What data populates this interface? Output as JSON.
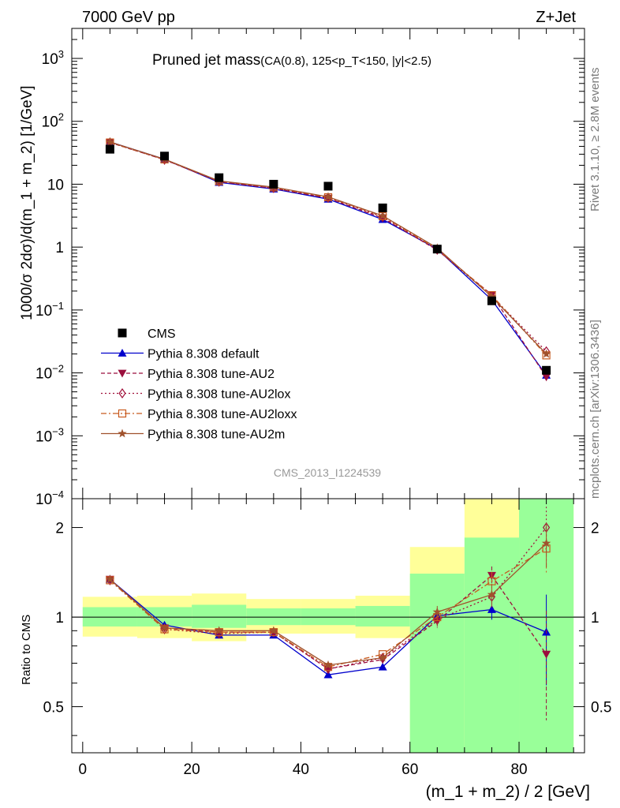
{
  "header": {
    "left": "7000 GeV pp",
    "right": "Z+Jet"
  },
  "side_labels": {
    "rivet": "Rivet 3.1.10, ≥ 2.8M events",
    "mcplots": "mcplots.cern.ch [arXiv:1306.3436]"
  },
  "colors": {
    "cms": "#000000",
    "default": "#0000cc",
    "au2": "#9b0f3d",
    "au2lox": "#a0103a",
    "au2loxx": "#c85a1e",
    "au2m": "#a0522d",
    "green_band": "#99ff99",
    "yellow_band": "#ffff99"
  },
  "chart_data": [
    {
      "type": "line",
      "panel": "main",
      "title": "Pruned jet mass",
      "title_sub": "(CA(0.8), 125<p_T<150, |y|<2.5)",
      "analysis_label": "CMS_2013_I1224539",
      "ylabel": "1000/σ 2dσ)/d(m_1 + m_2) [1/GeV]",
      "yscale": "log",
      "ylim": [
        0.0001,
        3000
      ],
      "xlim": [
        -2,
        92
      ],
      "x": [
        5,
        15,
        25,
        35,
        45,
        55,
        65,
        75,
        85
      ],
      "cms": {
        "name": "CMS",
        "values": [
          36,
          28,
          12.7,
          10.0,
          9.3,
          4.2,
          0.93,
          0.14,
          0.011
        ]
      },
      "series": [
        {
          "name": "Pythia 8.308 default",
          "key": "default",
          "values": [
            47,
            25,
            10.7,
            8.4,
            5.8,
            2.75,
            0.93,
            0.145,
            0.0092
          ]
        },
        {
          "name": "Pythia 8.308 tune-AU2",
          "key": "au2",
          "values": [
            46,
            24.5,
            11.0,
            8.6,
            6.0,
            2.9,
            0.9,
            0.175,
            0.0086
          ]
        },
        {
          "name": "Pythia 8.308 tune-AU2lox",
          "key": "au2lox",
          "values": [
            46,
            24.5,
            11.0,
            8.7,
            6.1,
            3.0,
            0.91,
            0.165,
            0.022
          ]
        },
        {
          "name": "Pythia 8.308 tune-AU2loxx",
          "key": "au2loxx",
          "values": [
            46,
            24.8,
            11.2,
            8.9,
            6.2,
            3.1,
            0.93,
            0.172,
            0.019
          ]
        },
        {
          "name": "Pythia 8.308 tune-AU2m",
          "key": "au2m",
          "values": [
            47,
            25,
            11.3,
            9.0,
            6.3,
            3.15,
            0.97,
            0.162,
            0.02
          ]
        }
      ],
      "yticks": [
        {
          "v": 1000,
          "base": "10",
          "exp": "3"
        },
        {
          "v": 100,
          "base": "10",
          "exp": "2"
        },
        {
          "v": 10,
          "base": "10",
          "exp": ""
        },
        {
          "v": 1,
          "base": "1",
          "exp": ""
        },
        {
          "v": 0.1,
          "base": "10",
          "exp": "−1"
        },
        {
          "v": 0.01,
          "base": "10",
          "exp": "−2"
        },
        {
          "v": 0.001,
          "base": "10",
          "exp": "−3"
        },
        {
          "v": 0.0001,
          "base": "10",
          "exp": "−4"
        }
      ]
    },
    {
      "type": "line",
      "panel": "ratio",
      "ylabel": "Ratio to CMS",
      "xlabel": "(m_1 + m_2) / 2 [GeV]",
      "yscale": "log",
      "ylim": [
        0.35,
        2.5
      ],
      "xlim": [
        -2,
        92
      ],
      "xticks": [
        0,
        20,
        40,
        60,
        80
      ],
      "yticks": [
        0.5,
        1,
        2
      ],
      "bins": [
        {
          "lo": 0,
          "hi": 10,
          "green": [
            0.93,
            1.08
          ],
          "yellow": [
            0.86,
            1.17
          ]
        },
        {
          "lo": 10,
          "hi": 20,
          "green": [
            0.93,
            1.08
          ],
          "yellow": [
            0.85,
            1.18
          ]
        },
        {
          "lo": 20,
          "hi": 30,
          "green": [
            0.92,
            1.1
          ],
          "yellow": [
            0.83,
            1.2
          ]
        },
        {
          "lo": 30,
          "hi": 40,
          "green": [
            0.94,
            1.07
          ],
          "yellow": [
            0.88,
            1.15
          ]
        },
        {
          "lo": 40,
          "hi": 50,
          "green": [
            0.94,
            1.07
          ],
          "yellow": [
            0.88,
            1.15
          ]
        },
        {
          "lo": 50,
          "hi": 60,
          "green": [
            0.93,
            1.09
          ],
          "yellow": [
            0.85,
            1.18
          ]
        },
        {
          "lo": 60,
          "hi": 70,
          "green": [
            0.35,
            1.4
          ],
          "yellow": [
            0.35,
            1.72
          ]
        },
        {
          "lo": 70,
          "hi": 80,
          "green": [
            0.35,
            1.85
          ],
          "yellow": [
            0.35,
            2.5
          ]
        },
        {
          "lo": 80,
          "hi": 90,
          "green": [
            0.35,
            2.5
          ],
          "yellow": [
            0.35,
            2.5
          ]
        }
      ],
      "series": [
        {
          "key": "default",
          "values": [
            1.34,
            0.94,
            0.87,
            0.87,
            0.64,
            0.68,
            1.01,
            1.06,
            0.89
          ],
          "err": [
            0.02,
            0.02,
            0.02,
            0.02,
            0.02,
            0.02,
            0.05,
            0.08,
            0.3
          ]
        },
        {
          "key": "au2",
          "values": [
            1.34,
            0.92,
            0.89,
            0.89,
            0.67,
            0.72,
            0.97,
            1.38,
            0.75
          ],
          "err": [
            0.02,
            0.02,
            0.02,
            0.02,
            0.02,
            0.02,
            0.05,
            0.1,
            0.3
          ]
        },
        {
          "key": "au2lox",
          "values": [
            1.33,
            0.91,
            0.88,
            0.89,
            0.67,
            0.73,
            0.98,
            1.17,
            2.0
          ],
          "err": [
            0.02,
            0.02,
            0.02,
            0.02,
            0.02,
            0.02,
            0.05,
            0.1,
            0.35
          ]
        },
        {
          "key": "au2loxx",
          "values": [
            1.33,
            0.91,
            0.89,
            0.89,
            0.68,
            0.75,
            1.0,
            1.32,
            1.7
          ],
          "err": [
            0.02,
            0.02,
            0.02,
            0.02,
            0.02,
            0.02,
            0.05,
            0.1,
            0.3
          ]
        },
        {
          "key": "au2m",
          "values": [
            1.34,
            0.92,
            0.9,
            0.9,
            0.69,
            0.73,
            1.04,
            1.19,
            1.77
          ],
          "err": [
            0.02,
            0.02,
            0.02,
            0.02,
            0.02,
            0.02,
            0.05,
            0.1,
            0.3
          ]
        }
      ]
    }
  ]
}
